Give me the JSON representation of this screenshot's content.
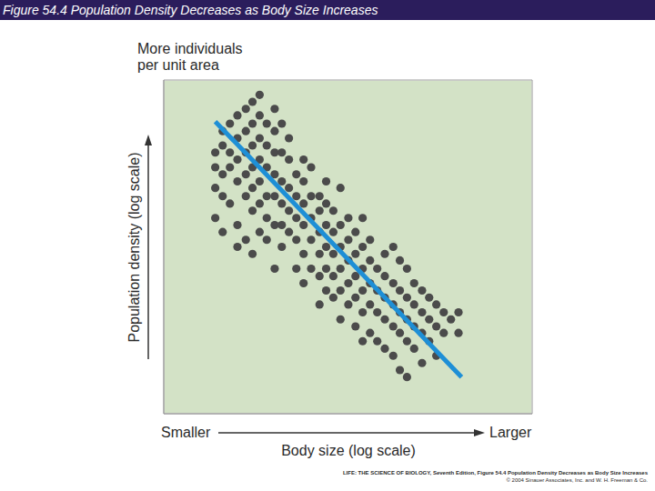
{
  "header": {
    "title": "Figure 54.4  Population Density Decreases as Body Size Increases"
  },
  "chart_data": {
    "type": "scatter",
    "xlabel": "Body size (log scale)",
    "ylabel": "Population density (log scale)",
    "annotations": {
      "y_top": "More individuals per unit area",
      "x_low": "Smaller",
      "x_high": "Larger"
    },
    "x": [
      5,
      5,
      5,
      5,
      6.3,
      6.3,
      6.3,
      6.3,
      6.3,
      7.9,
      7.9,
      7.9,
      7.9,
      10,
      10,
      10,
      10,
      10,
      10,
      13,
      13,
      13,
      13,
      13,
      13,
      16,
      16,
      16,
      16,
      16,
      16,
      16,
      20,
      20,
      20,
      20,
      20,
      20,
      20,
      25,
      25,
      25,
      25,
      25,
      25,
      32,
      32,
      32,
      32,
      32,
      32,
      32,
      40,
      40,
      40,
      40,
      40,
      40,
      50,
      50,
      50,
      50,
      50,
      63,
      63,
      63,
      63,
      63,
      79,
      79,
      79,
      79,
      79,
      79,
      100,
      100,
      100,
      100,
      100,
      130,
      130,
      130,
      130,
      130,
      130,
      160,
      160,
      160,
      160,
      160,
      160,
      200,
      200,
      200,
      200,
      200,
      250,
      250,
      250,
      250,
      250,
      250,
      320,
      320,
      320,
      320,
      320,
      400,
      400,
      400,
      400,
      400,
      500,
      500,
      500,
      500,
      500,
      500,
      630,
      630,
      630,
      630,
      630,
      790,
      790,
      790,
      790,
      1000,
      1000,
      1000,
      1000,
      1000,
      1300,
      1300,
      1300,
      1300,
      1300,
      1600,
      1600,
      1600,
      1600,
      1600,
      2000,
      2000,
      2000,
      2000,
      2000,
      2500,
      2500,
      2500,
      2500,
      3200,
      3200,
      3200,
      3200,
      4000,
      4000,
      4000,
      5000,
      5000,
      5000,
      6300,
      6300,
      7900,
      10000,
      10000
    ],
    "y": [
      4000,
      2500,
      1300,
      500,
      7900,
      5000,
      2000,
      1000,
      320,
      10000,
      4000,
      2500,
      790,
      13000,
      6300,
      3200,
      1600,
      400,
      200,
      16000,
      7900,
      4000,
      2000,
      1000,
      250,
      20000,
      10000,
      5000,
      2500,
      1300,
      630,
      160,
      25000,
      13000,
      6300,
      3200,
      1600,
      790,
      320,
      10000,
      5000,
      2500,
      1000,
      500,
      250,
      16000,
      7900,
      4000,
      2000,
      1000,
      400,
      100,
      10000,
      4000,
      1600,
      790,
      400,
      200,
      6300,
      3200,
      1300,
      630,
      320,
      2000,
      1000,
      500,
      250,
      100,
      3200,
      1600,
      790,
      400,
      160,
      63,
      2500,
      1000,
      500,
      250,
      100,
      1000,
      630,
      320,
      160,
      79,
      32,
      1600,
      790,
      400,
      200,
      100,
      50,
      630,
      320,
      160,
      79,
      40,
      1300,
      400,
      200,
      100,
      50,
      20,
      500,
      250,
      130,
      63,
      32,
      320,
      160,
      79,
      40,
      16,
      500,
      200,
      100,
      50,
      25,
      10,
      250,
      130,
      63,
      32,
      13,
      100,
      50,
      25,
      10,
      160,
      79,
      40,
      20,
      7.9,
      200,
      63,
      32,
      16,
      6.3,
      130,
      50,
      25,
      13,
      4,
      100,
      40,
      20,
      10,
      3.2,
      63,
      32,
      16,
      7.9,
      50,
      25,
      13,
      5,
      40,
      20,
      10,
      32,
      16,
      6.3,
      25,
      13,
      20,
      25,
      13
    ],
    "color": "#4b4b4b",
    "marker": "circle",
    "trend": {
      "type": "line",
      "x": [
        5,
        11000
      ],
      "y": [
        10700,
        3.2
      ],
      "color": "#1e8fd6",
      "line_style": "solid"
    },
    "xlim": [
      1,
      100000
    ],
    "ylim": [
      1,
      40000
    ],
    "xticks": [
      10,
      100,
      1000,
      10000
    ],
    "yticks": [
      10,
      100,
      1000,
      10000
    ],
    "log": true,
    "grid": true,
    "tick_labels": false
  },
  "footer": {
    "credit": [
      "LIFE: THE SCIENCE OF BIOLOGY, Seventh Edition, Figure 54.4 Population Density Decreases as Body Size Increases",
      "© 2004 Sinauer Associates, Inc. and W. H. Freeman & Co."
    ]
  }
}
